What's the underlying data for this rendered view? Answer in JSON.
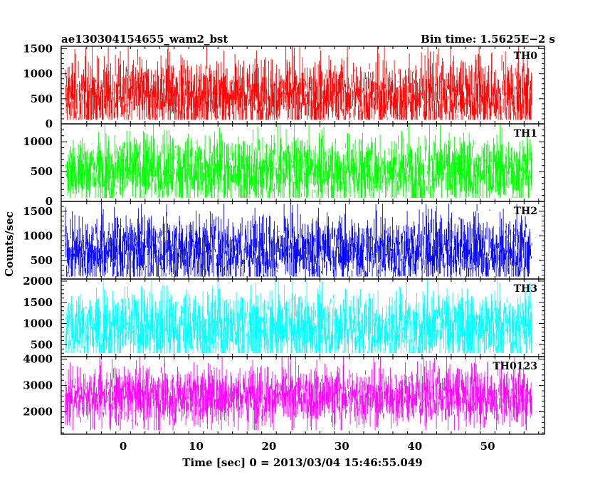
{
  "header": {
    "object_id": "ae130304154655_wam2_bst",
    "bin_time": "Bin time: 1.5625E−2 s"
  },
  "chart_data": {
    "type": "line",
    "xlabel": "Time [sec] 0 = 2013/03/04 15:46:55.049",
    "ylabel": "Counts/sec",
    "xlim": [
      -8.5,
      57.8
    ],
    "x_range_data": [
      -7.9,
      56.1
    ],
    "xticks": [
      0,
      10,
      20,
      30,
      40,
      50
    ],
    "bin_time": 0.015625,
    "panels": [
      {
        "name": "TH0",
        "color": "#ff0000",
        "ylim": [
          0,
          1550
        ],
        "yticks": [
          0,
          500,
          1000,
          1500
        ],
        "mean": 560,
        "low": 80,
        "high": 1550
      },
      {
        "name": "TH1",
        "color": "#00ff00",
        "ylim": [
          0,
          1300
        ],
        "yticks": [
          0,
          500,
          1000
        ],
        "mean": 530,
        "low": 60,
        "high": 1300
      },
      {
        "name": "TH2",
        "color": "#0000ff",
        "ylim": [
          120,
          1700
        ],
        "yticks": [
          500,
          1000,
          1500
        ],
        "mean": 700,
        "low": 170,
        "high": 1650
      },
      {
        "name": "TH3",
        "color": "#00ffff",
        "ylim": [
          220,
          2050
        ],
        "yticks": [
          500,
          1000,
          1500,
          2000
        ],
        "mean": 900,
        "low": 300,
        "high": 2050
      },
      {
        "name": "TH0123",
        "color": "#ff00ff",
        "ylim": [
          1150,
          4100
        ],
        "yticks": [
          2000,
          3000,
          4000
        ],
        "mean": 2600,
        "low": 1300,
        "high": 4100
      }
    ]
  }
}
